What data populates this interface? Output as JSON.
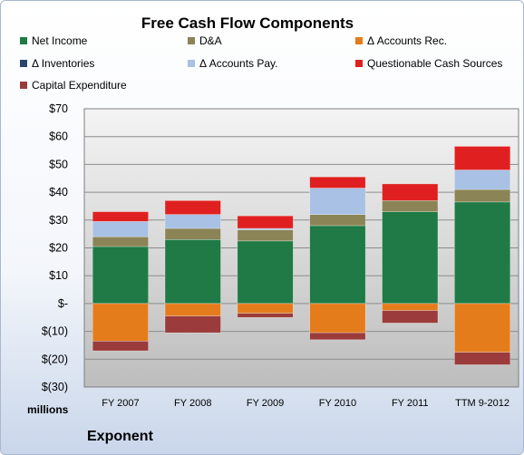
{
  "chart_data": {
    "type": "bar",
    "stacked": true,
    "title": "Free Cash Flow Components",
    "units_label": "millions",
    "footer": "Exponent",
    "categories": [
      "FY 2007",
      "FY 2008",
      "FY 2009",
      "FY 2010",
      "FY 2011",
      "TTM 9-2012"
    ],
    "y_ticks": [
      "$70",
      "$60",
      "$50",
      "$40",
      "$30",
      "$20",
      "$10",
      "$-",
      "$(10)",
      "$(20)",
      "$(30)"
    ],
    "ylim": [
      -30,
      70
    ],
    "grid": true,
    "legend_position": "top",
    "series": [
      {
        "name": "Net Income",
        "color": "#1f7a45",
        "values": [
          20.5,
          23,
          22.5,
          28,
          33,
          36.5
        ]
      },
      {
        "name": "D&A",
        "color": "#8b8456",
        "values": [
          3.5,
          4,
          4,
          4,
          4,
          4.5
        ]
      },
      {
        "name": "Δ Accounts Rec.",
        "color": "#e57c1c",
        "values": [
          -13.5,
          -4.5,
          -3.5,
          -10.5,
          -2.5,
          -17.5
        ]
      },
      {
        "name": "Δ Inventories",
        "color": "#26476b",
        "values": [
          0,
          0,
          0,
          0,
          0,
          0
        ]
      },
      {
        "name": "Δ Accounts Pay.",
        "color": "#a8c1e4",
        "values": [
          5.5,
          5,
          0.5,
          9.5,
          0,
          7
        ]
      },
      {
        "name": "Questionable Cash Sources",
        "color": "#e02020",
        "values": [
          3.5,
          5,
          4.5,
          4,
          6,
          8.5
        ]
      },
      {
        "name": "Capital Expenditure",
        "color": "#9b3b3b",
        "values": [
          -3.5,
          -6,
          -1.5,
          -2.5,
          -4.5,
          -4.5
        ]
      }
    ]
  }
}
